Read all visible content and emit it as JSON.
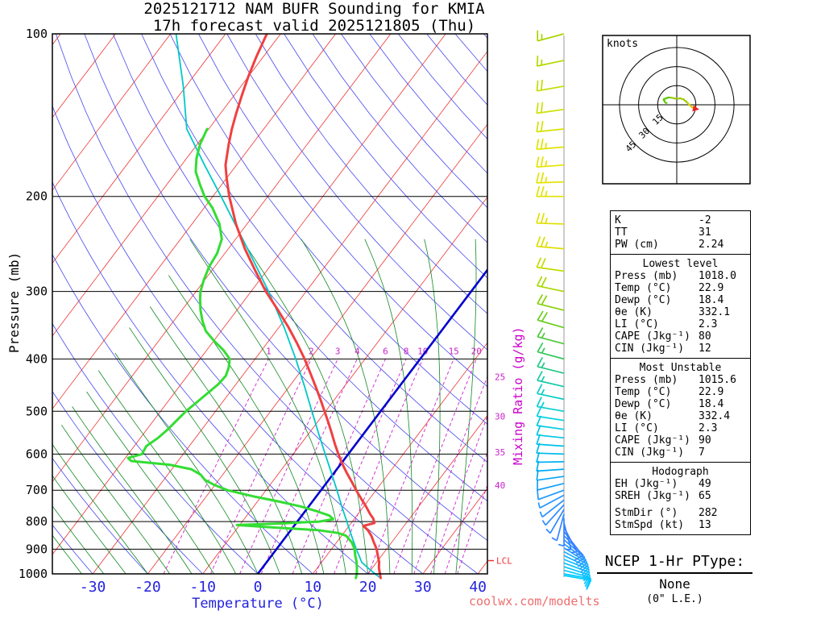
{
  "title": {
    "line1": "2025121712 NAM BUFR Sounding for KMIA",
    "line2": "17h forecast valid 2025121805 (Thu)"
  },
  "axes": {
    "pressure_label": "Pressure (mb)",
    "temperature_label": "Temperature (°C)",
    "mixing_ratio_label": "Mixing Ratio (g/kg)",
    "pressure_ticks": [
      100,
      200,
      300,
      400,
      500,
      600,
      700,
      800,
      900,
      1000
    ],
    "temperature_ticks": [
      -30,
      -20,
      -10,
      0,
      10,
      20,
      30,
      40
    ]
  },
  "hodograph_panel": {
    "units_label": "knots",
    "rings_kt": [
      15,
      30,
      45
    ]
  },
  "stats": {
    "indices": [
      [
        "K",
        "-2"
      ],
      [
        "TT",
        "31"
      ],
      [
        "PW (cm)",
        "2.24"
      ]
    ],
    "blocks": [
      {
        "header": "Lowest level",
        "rows": [
          [
            "Press (mb)",
            "1018.0"
          ],
          [
            "Temp (°C)",
            "22.9"
          ],
          [
            "Dewp (°C)",
            "18.4"
          ],
          [
            "θe (K)",
            "332.1"
          ],
          [
            "LI (°C)",
            "2.3"
          ],
          [
            "CAPE (Jkg⁻¹)",
            "80"
          ],
          [
            "CIN (Jkg⁻¹)",
            "12"
          ]
        ]
      },
      {
        "header": "Most Unstable",
        "rows": [
          [
            "Press (mb)",
            "1015.6"
          ],
          [
            "Temp (°C)",
            "22.9"
          ],
          [
            "Dewp (°C)",
            "18.4"
          ],
          [
            "θe (K)",
            "332.4"
          ],
          [
            "LI (°C)",
            "2.3"
          ],
          [
            "CAPE (Jkg⁻¹)",
            "90"
          ],
          [
            "CIN (Jkg⁻¹)",
            "7"
          ]
        ]
      },
      {
        "header": "Hodograph",
        "rows": [
          [
            "EH (Jkg⁻¹)",
            "49"
          ],
          [
            "SREH (Jkg⁻¹)",
            "65"
          ],
          [
            "StmDir (°)",
            "282"
          ],
          [
            "StmSpd (kt)",
            "13"
          ]
        ]
      }
    ]
  },
  "ptype": {
    "title": "NCEP 1-Hr PType:",
    "value": "None",
    "detail": "(0\" L.E.)"
  },
  "watermark": "coolwx.com/modelts",
  "lcl_label": "LCL",
  "colors": {
    "isotherm": "#ee3333",
    "dry_adiabat": "#4747ee",
    "moist_adiabat": "#118822",
    "mixing_ratio": "#cc22cc",
    "freezing_line": "#0000cc",
    "temperature_curve": "#f04040",
    "dewpoint_curve": "#33dd33",
    "parcel_curve": "#00c8c8",
    "axis_blue": "#2222dd",
    "watermark_red": "#ee6e6e"
  },
  "chart_data": {
    "type": "line",
    "variant": "skew-t-log-p",
    "pressure_axis_mb": [
      100,
      1000
    ],
    "temperature_axis_c": [
      -40,
      45
    ],
    "isotherm_step_c": 10,
    "mixing_ratio_lines_gkg": [
      1,
      2,
      3,
      4,
      6,
      8,
      10,
      15,
      20,
      25,
      30,
      35,
      40
    ],
    "lcl_pressure_mb": 945,
    "temperature_profile": {
      "pressure_mb": [
        1018,
        1000,
        975,
        950,
        925,
        900,
        875,
        850,
        830,
        815,
        805,
        790,
        775,
        750,
        725,
        700,
        675,
        650,
        625,
        600,
        575,
        550,
        525,
        500,
        475,
        450,
        425,
        400,
        375,
        350,
        325,
        300,
        275,
        250,
        225,
        200,
        185,
        175,
        160,
        150,
        140,
        130,
        120,
        110,
        100
      ],
      "temp_c": [
        22.9,
        22.2,
        21.2,
        20.4,
        19.3,
        18.2,
        16.8,
        15.4,
        14.0,
        12.6,
        14.2,
        13.4,
        12.2,
        10.4,
        8.4,
        6.4,
        4.4,
        2.3,
        0.2,
        -1.8,
        -3.8,
        -5.8,
        -7.9,
        -10.2,
        -12.6,
        -15.2,
        -18.0,
        -21.0,
        -24.4,
        -28.2,
        -32.5,
        -37.3,
        -42.0,
        -47.0,
        -52.0,
        -57.0,
        -60.0,
        -62.0,
        -64.3,
        -65.8,
        -67.2,
        -68.6,
        -70.0,
        -71.3,
        -72.5
      ]
    },
    "dewpoint_profile": {
      "pressure_mb": [
        1018,
        1000,
        975,
        950,
        925,
        900,
        875,
        850,
        840,
        830,
        820,
        812,
        806,
        800,
        792,
        780,
        765,
        750,
        735,
        720,
        700,
        685,
        670,
        655,
        640,
        628,
        618,
        610,
        600,
        580,
        560,
        540,
        520,
        500,
        480,
        460,
        445,
        430,
        415,
        400,
        385,
        370,
        355,
        340,
        325,
        310,
        300,
        285,
        270,
        255,
        240,
        225,
        210,
        200,
        190,
        180,
        170,
        160,
        150
      ],
      "temp_c": [
        18.4,
        18.0,
        17.2,
        16.3,
        15.2,
        14.2,
        12.8,
        10.8,
        9.0,
        5.0,
        -4.0,
        -10.5,
        -2.0,
        4.0,
        6.2,
        5.0,
        2.0,
        -1.5,
        -6.0,
        -11.0,
        -17.0,
        -20.0,
        -22.5,
        -24.0,
        -26.5,
        -31.0,
        -38.5,
        -39.5,
        -37.5,
        -37.8,
        -36.8,
        -36.2,
        -35.8,
        -35.4,
        -34.6,
        -33.8,
        -33.2,
        -33.0,
        -33.6,
        -34.6,
        -37.0,
        -40.0,
        -42.8,
        -44.8,
        -46.6,
        -48.2,
        -49.2,
        -50.2,
        -51.0,
        -51.4,
        -52.5,
        -55.0,
        -58.5,
        -61.5,
        -64.0,
        -66.5,
        -68.2,
        -69.5,
        -70.3
      ]
    },
    "parcel_trace": {
      "pressure_mb": [
        1018,
        1000,
        975,
        952,
        925,
        900,
        850,
        800,
        750,
        700,
        650,
        600,
        550,
        500,
        450,
        400,
        350,
        300,
        250,
        200,
        175,
        150,
        125,
        100
      ],
      "temp_c": [
        22.9,
        21.3,
        19.2,
        17.3,
        15.9,
        14.5,
        11.8,
        9.0,
        6.0,
        2.9,
        -0.5,
        -4.2,
        -8.2,
        -12.5,
        -17.2,
        -22.6,
        -29.0,
        -36.8,
        -46.5,
        -58.5,
        -65.8,
        -74.0,
        -80.5,
        -89.0
      ]
    },
    "winds": {
      "pressure_mb": [
        1018,
        1000,
        985,
        970,
        955,
        940,
        925,
        910,
        895,
        880,
        865,
        850,
        835,
        820,
        805,
        790,
        775,
        760,
        745,
        730,
        715,
        700,
        680,
        660,
        640,
        620,
        600,
        580,
        560,
        540,
        520,
        500,
        475,
        450,
        425,
        400,
        375,
        350,
        325,
        300,
        275,
        250,
        225,
        200,
        188,
        175,
        162,
        150,
        138,
        125,
        112,
        100
      ],
      "dir_deg": [
        100,
        100,
        105,
        108,
        110,
        112,
        115,
        118,
        122,
        126,
        130,
        135,
        142,
        152,
        165,
        180,
        195,
        210,
        222,
        232,
        242,
        250,
        256,
        262,
        266,
        269,
        272,
        274,
        276,
        278,
        279,
        280,
        282,
        283,
        284,
        285,
        285,
        286,
        284,
        282,
        278,
        275,
        272,
        270,
        268,
        266,
        265,
        264,
        262,
        260,
        258,
        255
      ],
      "speed_kt": [
        8,
        9,
        10,
        10,
        11,
        11,
        11,
        10,
        10,
        9,
        9,
        8,
        7,
        6,
        5,
        5,
        5,
        6,
        6,
        7,
        7,
        8,
        8,
        9,
        9,
        10,
        10,
        11,
        11,
        12,
        12,
        13,
        14,
        14,
        15,
        16,
        17,
        18,
        19,
        20,
        22,
        24,
        25,
        26,
        25,
        24,
        23,
        22,
        20,
        18,
        17,
        16
      ]
    },
    "wind_color_stops": [
      [
        100,
        "#a8d400"
      ],
      [
        135,
        "#ccdf00"
      ],
      [
        170,
        "#e4e400"
      ],
      [
        250,
        "#dede00"
      ],
      [
        300,
        "#a8d800"
      ],
      [
        345,
        "#6ccc14"
      ],
      [
        390,
        "#3cc84a"
      ],
      [
        430,
        "#1ec88e"
      ],
      [
        470,
        "#0cccc0"
      ],
      [
        520,
        "#00d2dc"
      ],
      [
        580,
        "#00c0ea"
      ],
      [
        640,
        "#00acf4"
      ],
      [
        700,
        "#1e9aff"
      ],
      [
        760,
        "#2f88ff"
      ],
      [
        820,
        "#3a7dff"
      ],
      [
        870,
        "#2f97ff"
      ],
      [
        920,
        "#16b2ff"
      ],
      [
        960,
        "#06c4ff"
      ],
      [
        1020,
        "#00ccff"
      ]
    ],
    "hodograph": {
      "storm_dir_deg": 282,
      "storm_speed_kt": 13,
      "rings_kt": [
        15,
        30,
        45
      ],
      "max_plot_pressure_mb": 480,
      "trace_color_stops": [
        [
          850,
          "#5ec800"
        ],
        [
          680,
          "#9cc800"
        ],
        [
          0,
          "#d2d200"
        ]
      ]
    }
  }
}
